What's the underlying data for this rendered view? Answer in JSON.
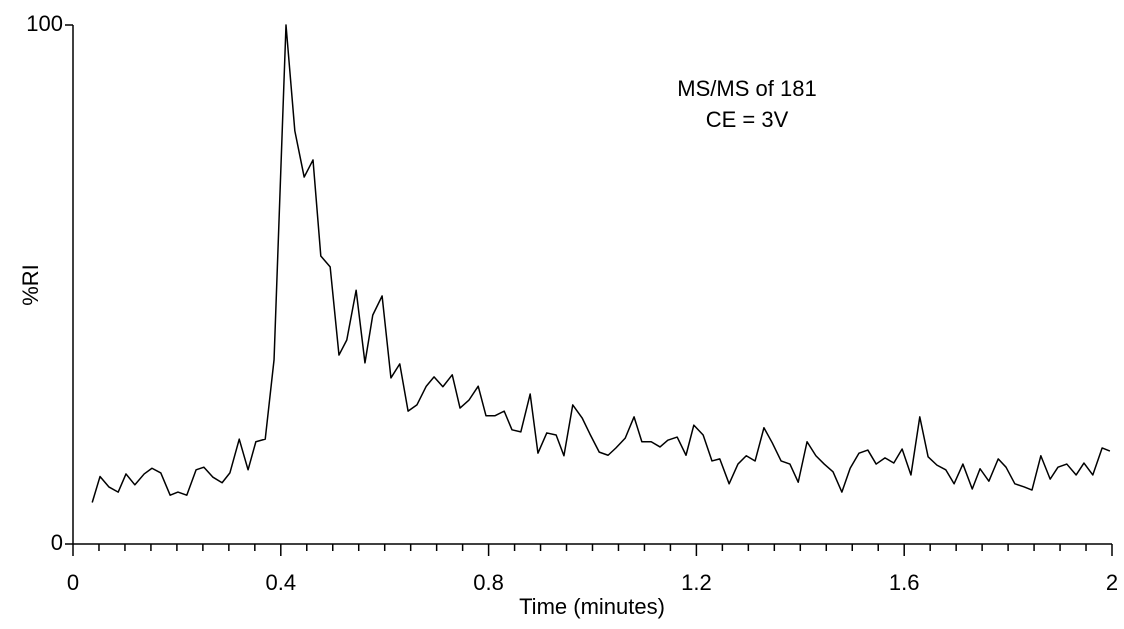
{
  "chart_data": {
    "type": "line",
    "annotations": [
      "MS/MS of 181",
      "CE = 3V"
    ],
    "xlabel": "Time (minutes)",
    "ylabel": "%RI",
    "xlim": [
      0,
      2
    ],
    "ylim": [
      0,
      100
    ],
    "xticks": [
      0,
      0.4,
      0.8,
      1.2,
      1.6,
      2
    ],
    "xminorticks": [
      0.05,
      0.1,
      0.15,
      0.2,
      0.25,
      0.3,
      0.35,
      0.45,
      0.5,
      0.55,
      0.6,
      0.65,
      0.7,
      0.75,
      0.85,
      0.9,
      0.95,
      1.0,
      1.05,
      1.1,
      1.15,
      1.25,
      1.3,
      1.35,
      1.4,
      1.45,
      1.5,
      1.55,
      1.65,
      1.7,
      1.75,
      1.8,
      1.85,
      1.9,
      1.95
    ],
    "yticks": [
      0,
      100
    ],
    "color": "#000000",
    "x": [
      0.037,
      0.052,
      0.069,
      0.087,
      0.102,
      0.119,
      0.137,
      0.152,
      0.169,
      0.187,
      0.202,
      0.219,
      0.237,
      0.252,
      0.269,
      0.287,
      0.302,
      0.32,
      0.337,
      0.352,
      0.37,
      0.387,
      0.41,
      0.427,
      0.445,
      0.462,
      0.477,
      0.495,
      0.512,
      0.527,
      0.545,
      0.562,
      0.577,
      0.595,
      0.612,
      0.629,
      0.645,
      0.662,
      0.68,
      0.695,
      0.712,
      0.73,
      0.745,
      0.762,
      0.78,
      0.795,
      0.812,
      0.83,
      0.845,
      0.862,
      0.88,
      0.895,
      0.912,
      0.93,
      0.945,
      0.962,
      0.98,
      0.995,
      1.013,
      1.03,
      1.045,
      1.063,
      1.08,
      1.095,
      1.113,
      1.13,
      1.145,
      1.163,
      1.18,
      1.195,
      1.213,
      1.23,
      1.245,
      1.263,
      1.28,
      1.296,
      1.313,
      1.33,
      1.346,
      1.363,
      1.38,
      1.396,
      1.413,
      1.43,
      1.446,
      1.463,
      1.48,
      1.496,
      1.513,
      1.53,
      1.546,
      1.563,
      1.58,
      1.596,
      1.613,
      1.63,
      1.646,
      1.663,
      1.68,
      1.696,
      1.713,
      1.731,
      1.746,
      1.763,
      1.781,
      1.796,
      1.813,
      1.831,
      1.846,
      1.863,
      1.881,
      1.896,
      1.913,
      1.931,
      1.946,
      1.963,
      1.981,
      1.996
    ],
    "values": [
      8,
      13,
      11,
      10,
      13.5,
      11.4,
      13.5,
      14.6,
      13.7,
      9.4,
      10,
      9.4,
      14.3,
      14.8,
      12.9,
      11.8,
      13.7,
      20.2,
      14.3,
      19.7,
      20.2,
      35.5,
      100,
      79.6,
      70.7,
      74,
      55.5,
      53.4,
      36.4,
      39.3,
      48.9,
      34.9,
      44.1,
      47.8,
      32,
      34.7,
      25.6,
      26.8,
      30.4,
      32.2,
      30.3,
      32.6,
      26.2,
      27.7,
      30.4,
      24.7,
      24.7,
      25.6,
      22,
      21.6,
      28.9,
      17.5,
      21.4,
      21,
      17,
      26.8,
      24.3,
      21.2,
      17.7,
      17.1,
      18.5,
      20.4,
      24.5,
      19.7,
      19.7,
      18.7,
      20,
      20.6,
      17.1,
      22.9,
      21,
      16,
      16.4,
      11.6,
      15.4,
      17,
      16,
      22.4,
      19.5,
      16,
      15.4,
      11.9,
      19.7,
      17,
      15.4,
      13.9,
      10,
      14.6,
      17.5,
      18.1,
      15.4,
      16.6,
      15.6,
      18.3,
      13.3,
      24.5,
      16.8,
      15.2,
      14.3,
      11.6,
      15.4,
      10.6,
      14.5,
      12.1,
      16.4,
      14.8,
      11.6,
      11,
      10.4,
      17,
      12.5,
      14.8,
      15.4,
      13.3,
      15.6,
      13.3,
      18.5,
      17.9
    ]
  }
}
